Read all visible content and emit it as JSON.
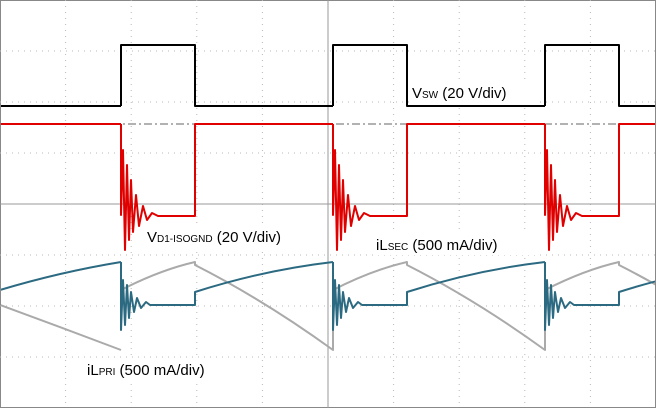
{
  "traces": [
    {
      "main": "V",
      "sub": "SW",
      "scale": "(20 V/div)"
    },
    {
      "main": "V",
      "sub": "D1-ISOGND",
      "scale": "(20 V/div)"
    },
    {
      "main": "iL",
      "sub": "SEC",
      "scale": "(500 mA/div)"
    },
    {
      "main": "iL",
      "sub": "PRI",
      "scale": "(500 mA/div)"
    }
  ]
}
